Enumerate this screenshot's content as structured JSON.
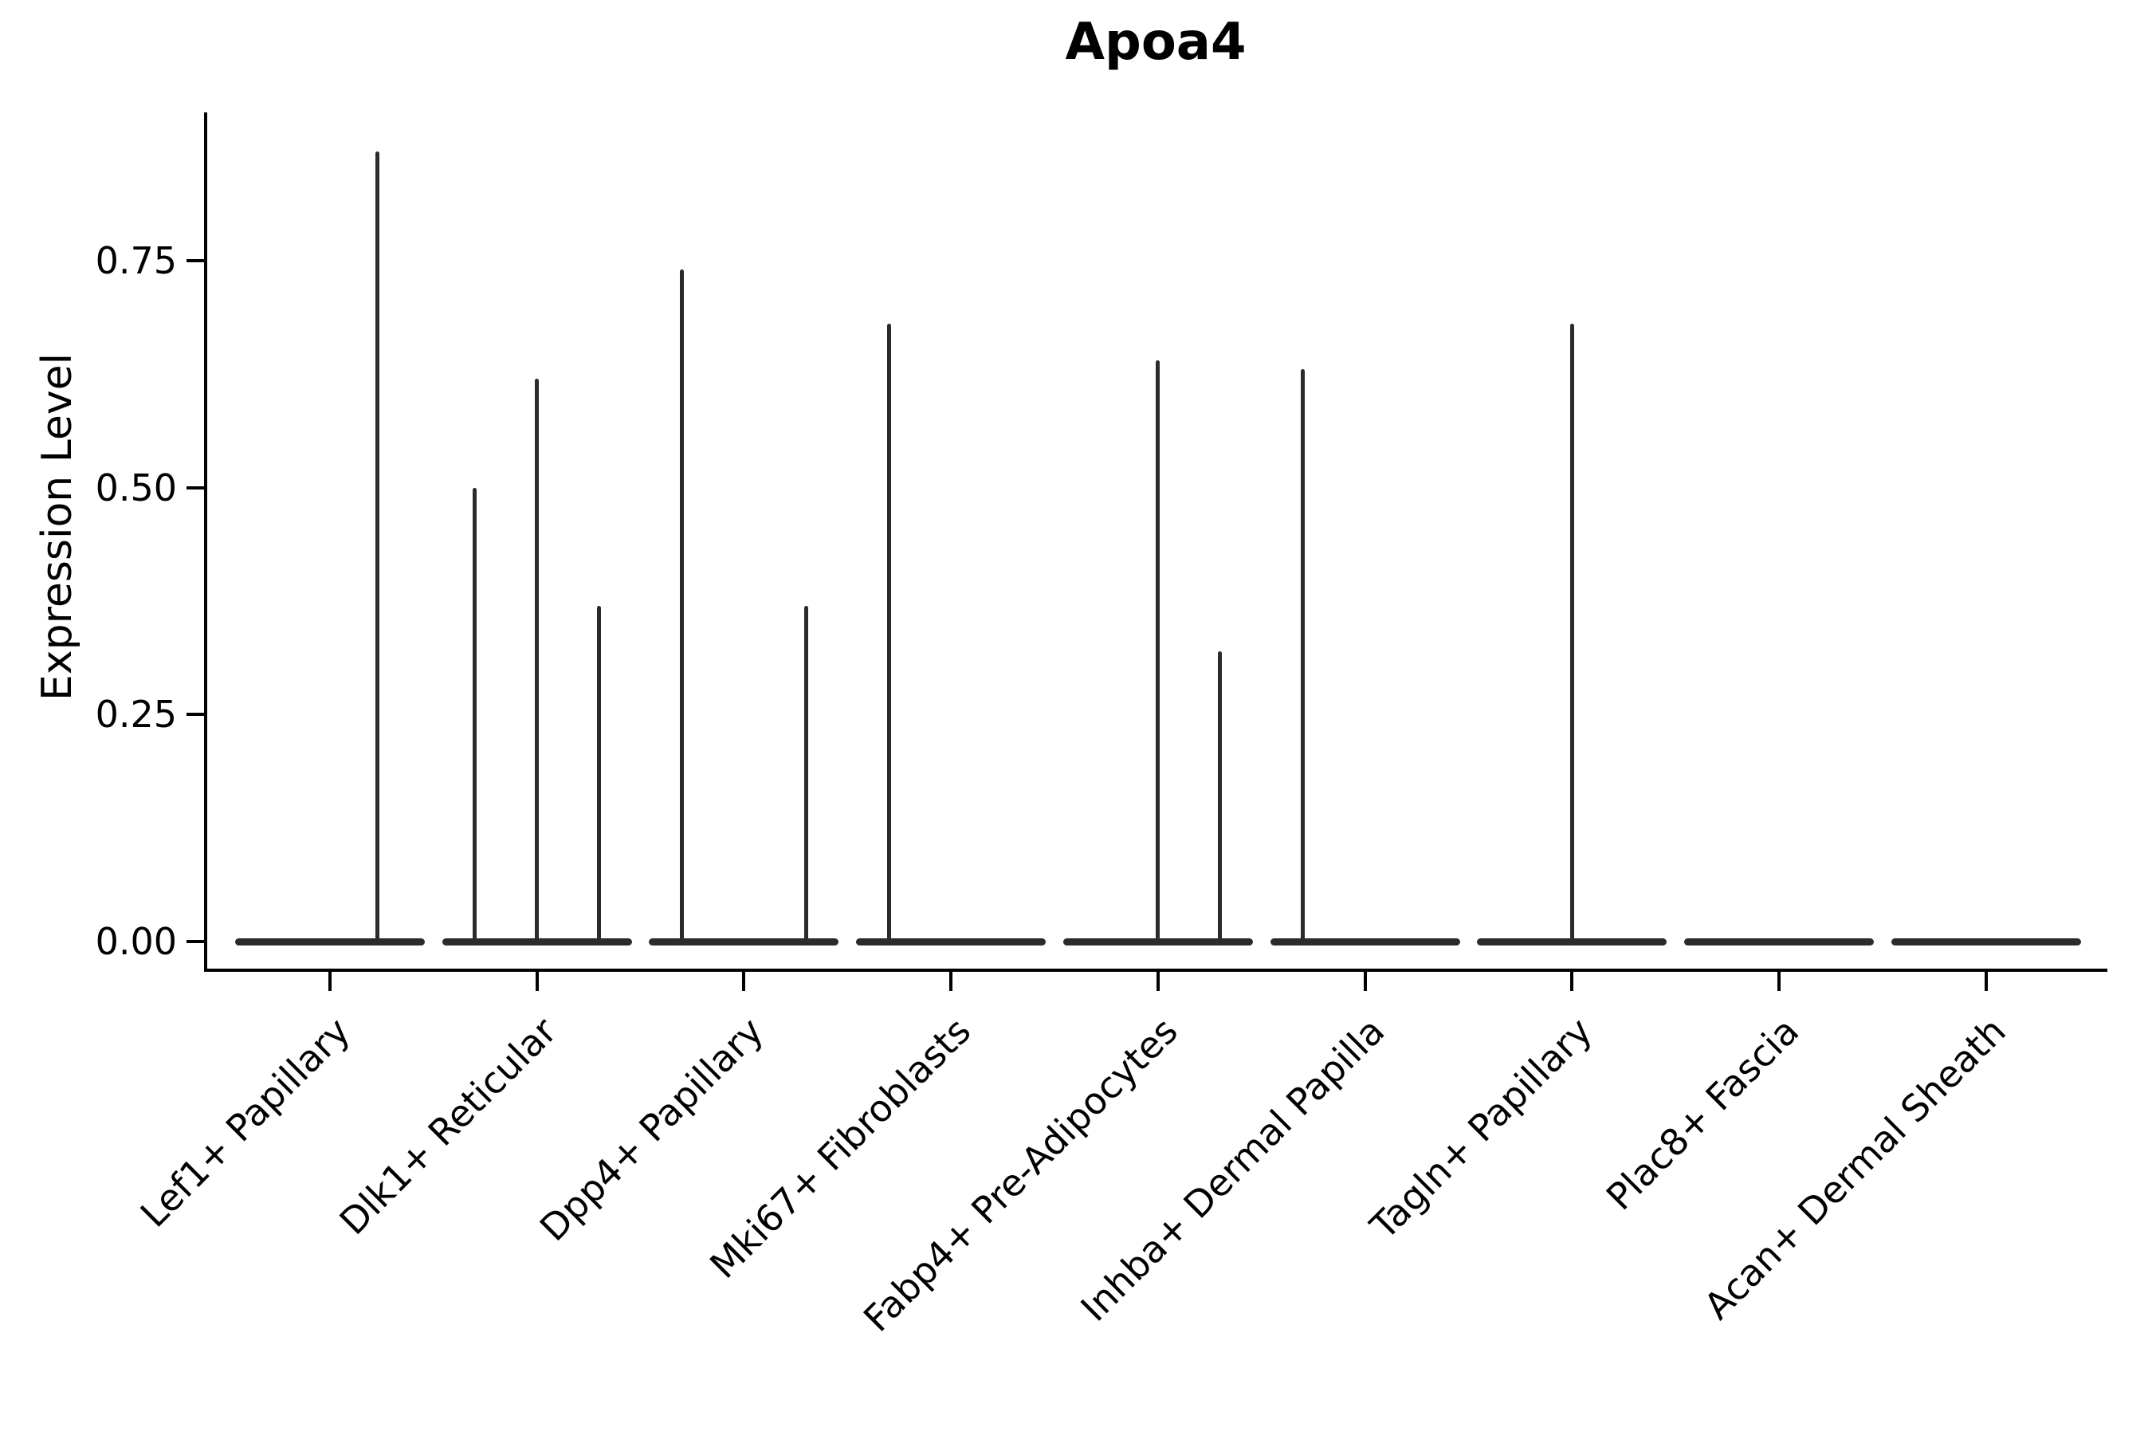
{
  "chart_data": {
    "type": "violin",
    "title": "Apoa4",
    "xlabel": "",
    "ylabel": "Expression Level",
    "legend": "none",
    "grid": false,
    "ylim": [
      -0.032,
      0.913
    ],
    "yticks": [
      {
        "value": 0.0,
        "label": "0.00"
      },
      {
        "value": 0.25,
        "label": "0.25"
      },
      {
        "value": 0.5,
        "label": "0.50"
      },
      {
        "value": 0.75,
        "label": "0.75"
      }
    ],
    "categories": [
      "Lef1+ Papillary",
      "Dlk1+ Reticular",
      "Dpp4+ Papillary",
      "Mki67+ Fibroblasts",
      "Fabp4+ Pre-Adipocytes",
      "Inhba+ Dermal Papilla",
      "Tagln+ Papillary",
      "Plac8+ Fascia",
      "Acan+ Dermal Sheath"
    ],
    "violins": [
      {
        "category": "Lef1+ Papillary",
        "base_max": 0.0,
        "spikes": [
          {
            "offset": 0.23,
            "max": 0.87
          }
        ]
      },
      {
        "category": "Dlk1+ Reticular",
        "base_max": 0.0,
        "spikes": [
          {
            "offset": -0.3,
            "max": 0.5
          },
          {
            "offset": 0.0,
            "max": 0.62
          },
          {
            "offset": 0.3,
            "max": 0.37
          }
        ]
      },
      {
        "category": "Dpp4+ Papillary",
        "base_max": 0.0,
        "spikes": [
          {
            "offset": -0.3,
            "max": 0.74
          },
          {
            "offset": 0.3,
            "max": 0.37
          }
        ]
      },
      {
        "category": "Mki67+ Fibroblasts",
        "base_max": 0.0,
        "spikes": [
          {
            "offset": -0.3,
            "max": 0.68
          }
        ]
      },
      {
        "category": "Fabp4+ Pre-Adipocytes",
        "base_max": 0.0,
        "spikes": [
          {
            "offset": 0.0,
            "max": 0.64
          },
          {
            "offset": 0.3,
            "max": 0.32
          }
        ]
      },
      {
        "category": "Inhba+ Dermal Papilla",
        "base_max": 0.0,
        "spikes": [
          {
            "offset": -0.3,
            "max": 0.63
          }
        ]
      },
      {
        "category": "Tagln+ Papillary",
        "base_max": 0.0,
        "spikes": [
          {
            "offset": 0.0,
            "max": 0.68
          }
        ]
      },
      {
        "category": "Plac8+ Fascia",
        "base_max": 0.0,
        "spikes": []
      },
      {
        "category": "Acan+ Dermal Sheath",
        "base_max": 0.0,
        "spikes": []
      }
    ],
    "colors": {
      "violin": "#2b2b2b",
      "axis": "#000000",
      "text": "#000000",
      "background": "#ffffff"
    }
  }
}
